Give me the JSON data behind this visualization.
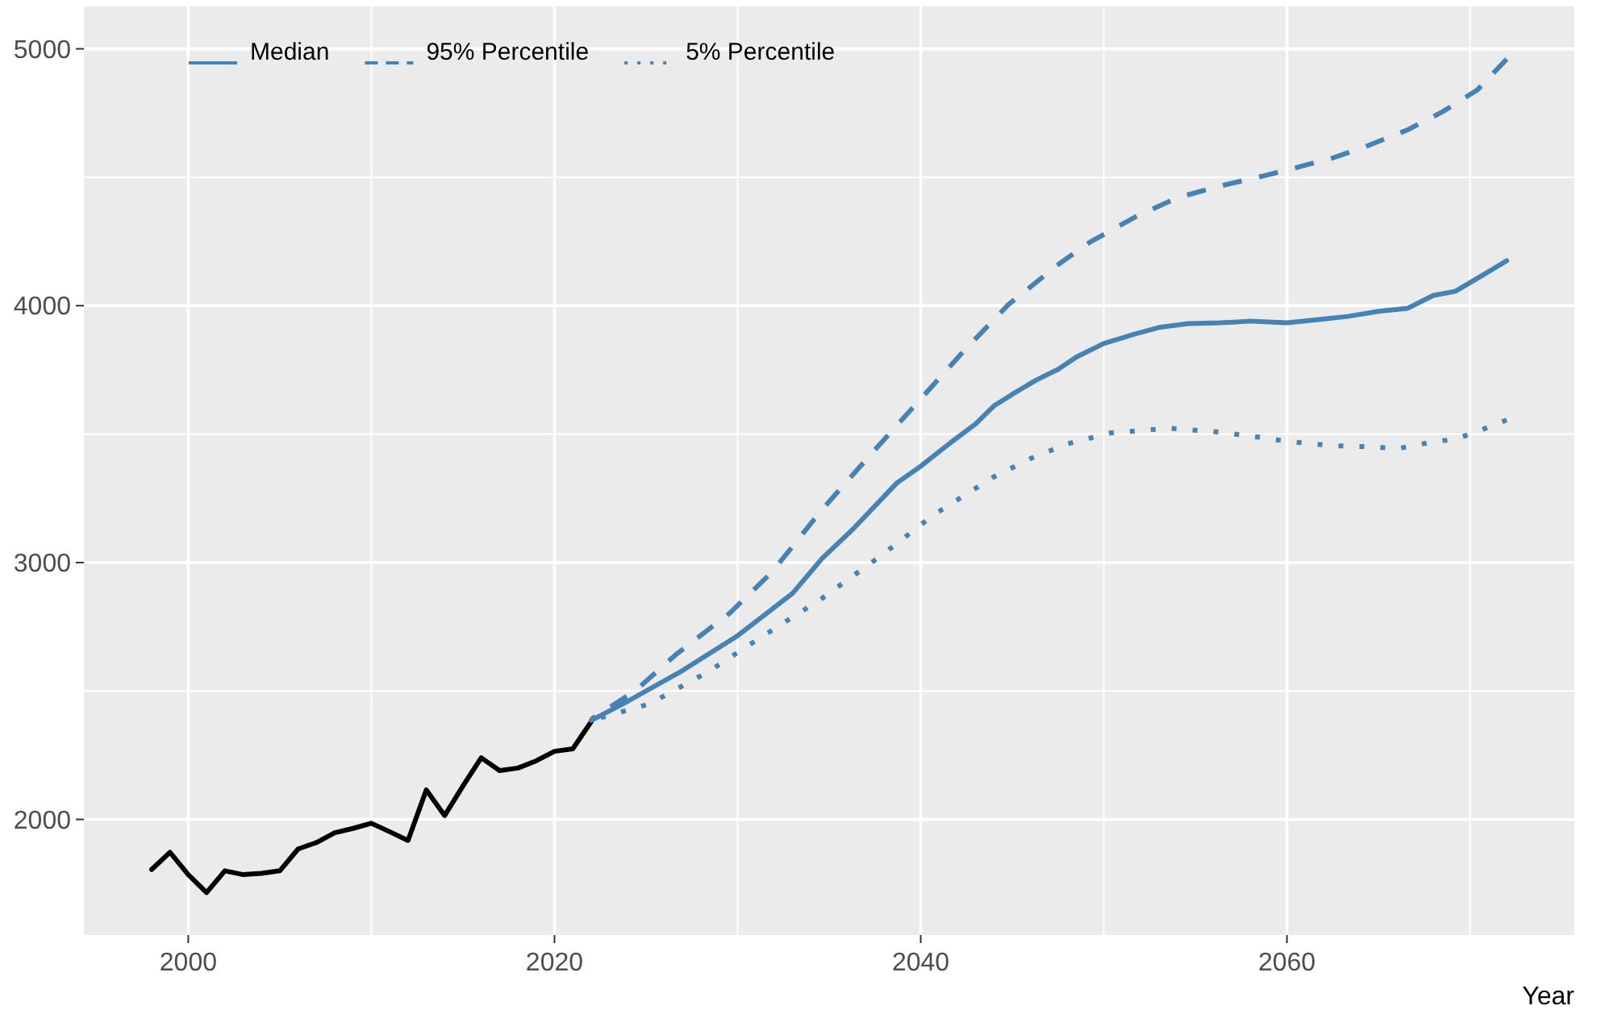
{
  "chart_data": {
    "type": "line",
    "xlabel": "Year",
    "xlim": [
      1994.3,
      2075.7
    ],
    "ylim": [
      1550,
      5165
    ],
    "xticks": [
      2000,
      {
        "value": 2010,
        "label": null
      },
      2020,
      {
        "value": 2030,
        "label": null
      },
      2040,
      {
        "value": 2050,
        "label": null
      },
      2060,
      {
        "value": 2070,
        "label": null
      }
    ],
    "yticks": [
      2000,
      {
        "value": 2500,
        "label": null
      },
      3000,
      {
        "value": 3500,
        "label": null
      },
      4000,
      {
        "value": 4500,
        "label": null
      },
      5000
    ],
    "grid": true,
    "legend": "top left",
    "series": [
      {
        "color": "#000000",
        "line_style": "solid",
        "x": [
          1998,
          1999,
          2000,
          2001,
          2002,
          2003,
          2004,
          2005,
          2006,
          2007,
          2008,
          2009,
          2010,
          2011,
          2012,
          2013,
          2014,
          2015,
          2016,
          2017,
          2018,
          2019,
          2020,
          2021,
          2022
        ],
        "values": [
          1805,
          1872,
          1785,
          1715,
          1800,
          1785,
          1790,
          1800,
          1885,
          1910,
          1948,
          1965,
          1985,
          1952,
          1918,
          2115,
          2015,
          2130,
          2240,
          2190,
          2200,
          2228,
          2265,
          2275,
          2380
        ]
      },
      {
        "name": "Median",
        "color": "#4682b4",
        "line_style": "solid",
        "x": [
          2022,
          2024,
          2027,
          2030,
          2033,
          2034.6,
          2036.3,
          2038.7,
          2040,
          2041.6,
          2043,
          2044,
          2045,
          2046.3,
          2047.5,
          2048.5,
          2050,
          2051.7,
          2053,
          2054.6,
          2056.3,
          2058,
          2060,
          2061.6,
          2063.3,
          2065,
          2066.6,
          2068,
          2069.2,
          2070.6,
          2072
        ],
        "values": [
          2385,
          2460,
          2580,
          2715,
          2880,
          3015,
          3130,
          3310,
          3375,
          3465,
          3540,
          3610,
          3655,
          3710,
          3752,
          3800,
          3853,
          3890,
          3915,
          3930,
          3933,
          3940,
          3933,
          3945,
          3958,
          3978,
          3990,
          4040,
          4056,
          4115,
          4175
        ]
      },
      {
        "name": "95% Percentile",
        "color": "#4682b4",
        "line_style": "dashed",
        "x": [
          2022,
          2024.4,
          2026.6,
          2029.6,
          2031.9,
          2034.6,
          2037.2,
          2040.1,
          2042.5,
          2044.8,
          2047.6,
          2049.3,
          2051.7,
          2054,
          2056.3,
          2058.7,
          2060.1,
          2062.5,
          2064.5,
          2066.6,
          2068.5,
          2070.4,
          2072
        ],
        "values": [
          2390,
          2500,
          2640,
          2805,
          2965,
          3205,
          3415,
          3645,
          3835,
          4005,
          4165,
          4250,
          4345,
          4420,
          4465,
          4505,
          4530,
          4575,
          4625,
          4685,
          4755,
          4840,
          4960
        ]
      },
      {
        "name": "5% Percentile",
        "color": "#4682b4",
        "line_style": "dotted",
        "x": [
          2022,
          2025.2,
          2028.4,
          2031.3,
          2034.6,
          2037.8,
          2040.7,
          2043.9,
          2046,
          2048,
          2050.4,
          2052.5,
          2053.7,
          2056,
          2058.1,
          2060.1,
          2062.5,
          2064.8,
          2066,
          2068,
          2069.2,
          2070.2,
          2072
        ],
        "values": [
          2385,
          2450,
          2575,
          2710,
          2860,
          3025,
          3185,
          3330,
          3405,
          3462,
          3505,
          3517,
          3522,
          3510,
          3492,
          3471,
          3455,
          3450,
          3443,
          3470,
          3480,
          3505,
          3555
        ]
      }
    ]
  }
}
